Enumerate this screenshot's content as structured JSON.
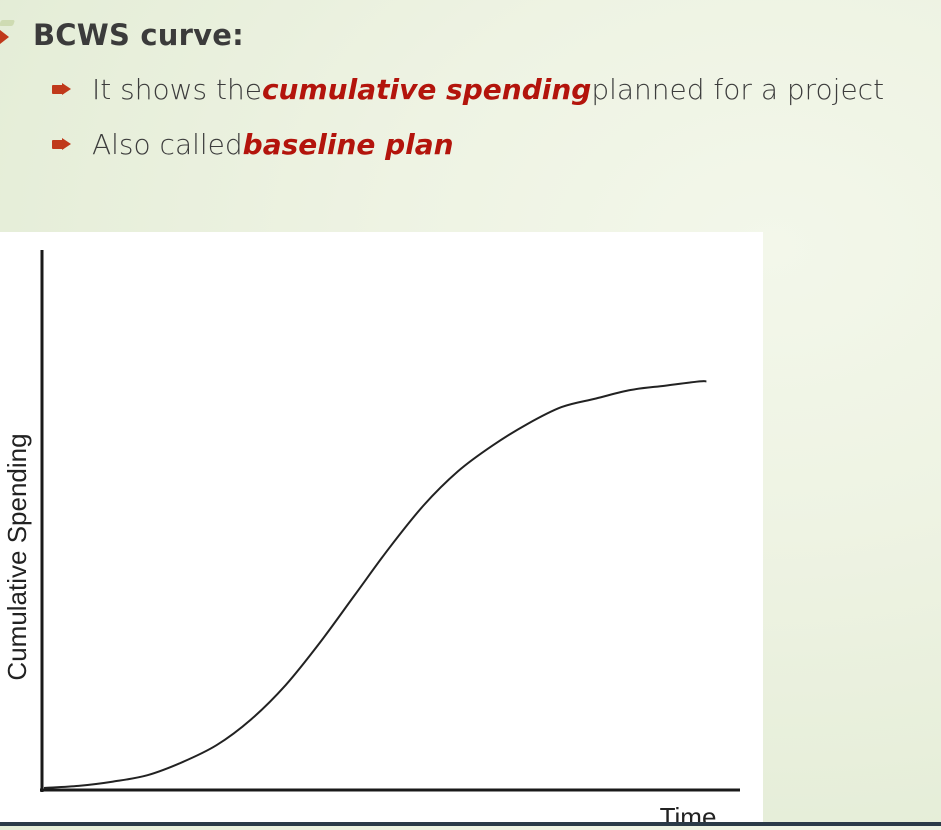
{
  "slide": {
    "heading": "BCWS curve:",
    "bullets": [
      {
        "prefix": "It shows the ",
        "emphasis": "cumulative spending",
        "suffix": " planned for a project"
      },
      {
        "prefix": "Also called ",
        "emphasis": "baseline plan",
        "suffix": ""
      }
    ],
    "colors": {
      "accent": "#c0391b",
      "emphasis": "#b3140c",
      "text": "#3c3c3c",
      "background": "#eef3e3"
    }
  },
  "chart_data": {
    "type": "line",
    "title": "",
    "xlabel": "Time",
    "ylabel": "Cumulative Spending",
    "grid": false,
    "legend": "none",
    "xlim": [
      0,
      1
    ],
    "ylim": [
      0,
      1
    ],
    "series": [
      {
        "x": [
          0,
          0.05,
          0.1,
          0.15,
          0.2,
          0.25,
          0.3,
          0.35,
          0.4,
          0.45,
          0.5,
          0.55,
          0.6,
          0.65,
          0.7,
          0.75,
          0.8,
          0.85,
          0.9,
          0.95,
          0.96
        ],
        "values": [
          0,
          0.005,
          0.015,
          0.03,
          0.06,
          0.1,
          0.16,
          0.24,
          0.34,
          0.45,
          0.56,
          0.66,
          0.74,
          0.8,
          0.85,
          0.89,
          0.91,
          0.93,
          0.94,
          0.95,
          0.95
        ]
      }
    ]
  }
}
